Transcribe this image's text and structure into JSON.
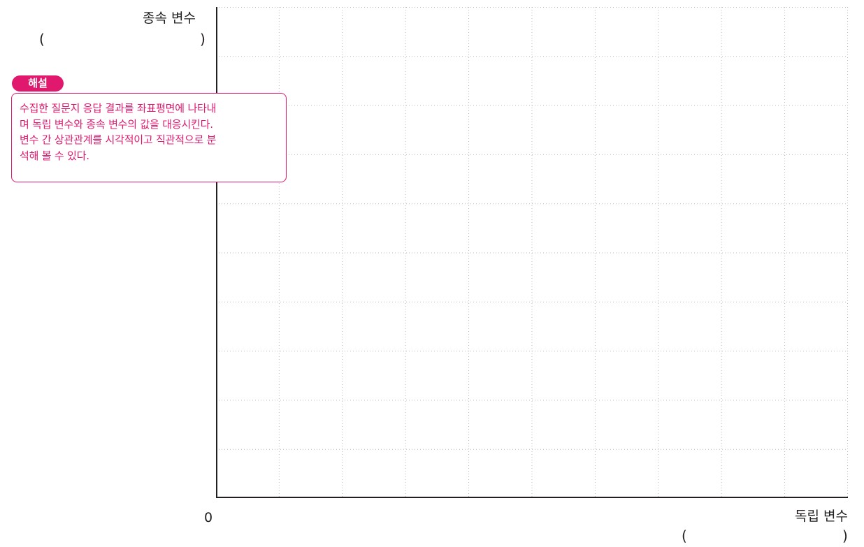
{
  "y_axis": {
    "title": "종속 변수",
    "paren_open": "(",
    "paren_close": ")"
  },
  "x_axis": {
    "title": "독립 변수",
    "paren_open": "(",
    "paren_close": ")"
  },
  "origin_label": "0",
  "grid": {
    "columns": 10,
    "rows": 10
  },
  "explanation": {
    "badge": "해설",
    "lines": [
      "수집한 질문지 응답 결과를 좌표평면에 나타내",
      "며 독립 변수와 종속 변수의 값을 대응시킨다.",
      "변수 간 상관관계를 시각적이고 직관적으로 분",
      "석해 볼 수 있다."
    ]
  },
  "colors": {
    "accent": "#e0196e",
    "text": "#231f20",
    "grid_line": "#b9b9b9",
    "axis_line": "#231f20"
  }
}
